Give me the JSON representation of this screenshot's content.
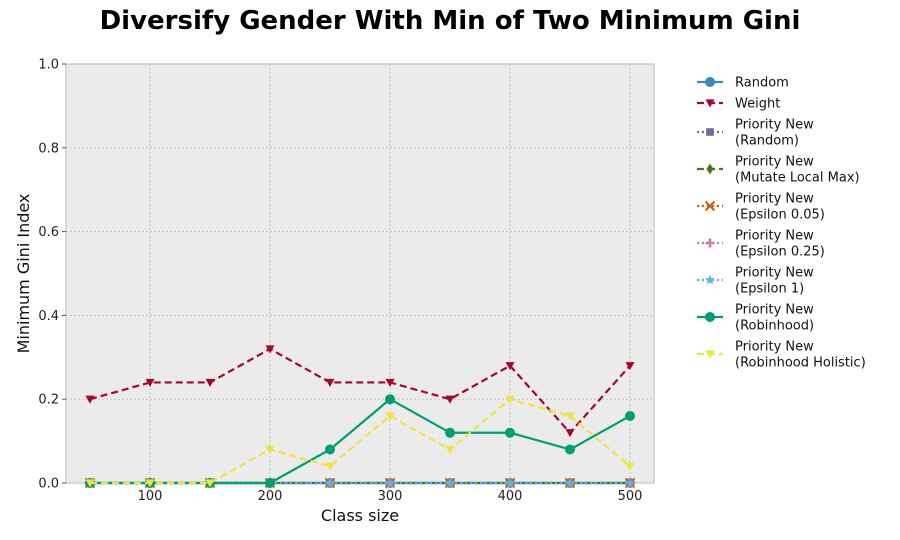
{
  "chart_data": {
    "type": "line",
    "title": "Diversify Gender With Min of Two Minimum Gini",
    "xlabel": "Class size",
    "ylabel": "Minimum Gini Index",
    "xlim": [
      30,
      520
    ],
    "ylim": [
      0,
      1.0
    ],
    "x_ticks": [
      100,
      200,
      300,
      400,
      500
    ],
    "y_ticks": [
      0.0,
      0.2,
      0.4,
      0.6,
      0.8,
      1.0
    ],
    "x_tick_labels": [
      "100",
      "200",
      "300",
      "400",
      "500"
    ],
    "y_tick_labels": [
      "0.0",
      "0.2",
      "0.4",
      "0.6",
      "0.8",
      "1.0"
    ],
    "grid": true,
    "legend_position": "outside-right",
    "x": [
      50,
      100,
      150,
      200,
      250,
      300,
      350,
      400,
      450,
      500
    ],
    "series": [
      {
        "name": "Random",
        "color": "#348ABD",
        "marker": "circle",
        "dash": "solid",
        "values": [
          0,
          0,
          0,
          0,
          0,
          0,
          0,
          0,
          0,
          0
        ]
      },
      {
        "name": "Weight",
        "color": "#A60628",
        "marker": "triangle-down",
        "dash": "dashed",
        "values": [
          0.2,
          0.24,
          0.24,
          0.32,
          0.24,
          0.24,
          0.2,
          0.28,
          0.12,
          0.28
        ]
      },
      {
        "name": "Priority New\n(Random)",
        "color": "#7A68A6",
        "marker": "square",
        "dash": "dotted",
        "values": [
          0,
          0,
          0,
          0,
          0,
          0,
          0,
          0,
          0,
          0
        ]
      },
      {
        "name": "Priority New\n(Mutate Local Max)",
        "color": "#467821",
        "marker": "diamond",
        "dash": "dashed",
        "values": [
          0,
          0,
          0,
          0,
          0,
          0,
          0,
          0,
          0,
          0
        ]
      },
      {
        "name": "Priority New\n(Epsilon 0.05)",
        "color": "#D55E00",
        "marker": "x",
        "dash": "dotted",
        "values": [
          0,
          0,
          0,
          0,
          0,
          0,
          0,
          0,
          0,
          0
        ]
      },
      {
        "name": "Priority New\n(Epsilon 0.25)",
        "color": "#CC79A7",
        "marker": "plus",
        "dash": "dotted",
        "values": [
          0,
          0,
          0,
          0,
          0,
          0,
          0,
          0,
          0,
          0
        ]
      },
      {
        "name": "Priority New\n(Epsilon 1)",
        "color": "#56B4E9",
        "marker": "star",
        "dash": "dotted",
        "values": [
          0,
          0,
          0,
          0,
          0,
          0,
          0,
          0,
          0,
          0
        ]
      },
      {
        "name": "Priority New\n(Robinhood)",
        "color": "#009E73",
        "marker": "circle",
        "dash": "solid",
        "values": [
          0,
          0,
          0,
          0,
          0.08,
          0.2,
          0.12,
          0.12,
          0.08,
          0.16
        ]
      },
      {
        "name": "Priority New\n(Robinhood Holistic)",
        "color": "#F0E442",
        "marker": "triangle-down",
        "dash": "dashed",
        "values": [
          0,
          0,
          0,
          0.08,
          0.04,
          0.16,
          0.08,
          0.2,
          0.16,
          0.04
        ]
      }
    ]
  }
}
